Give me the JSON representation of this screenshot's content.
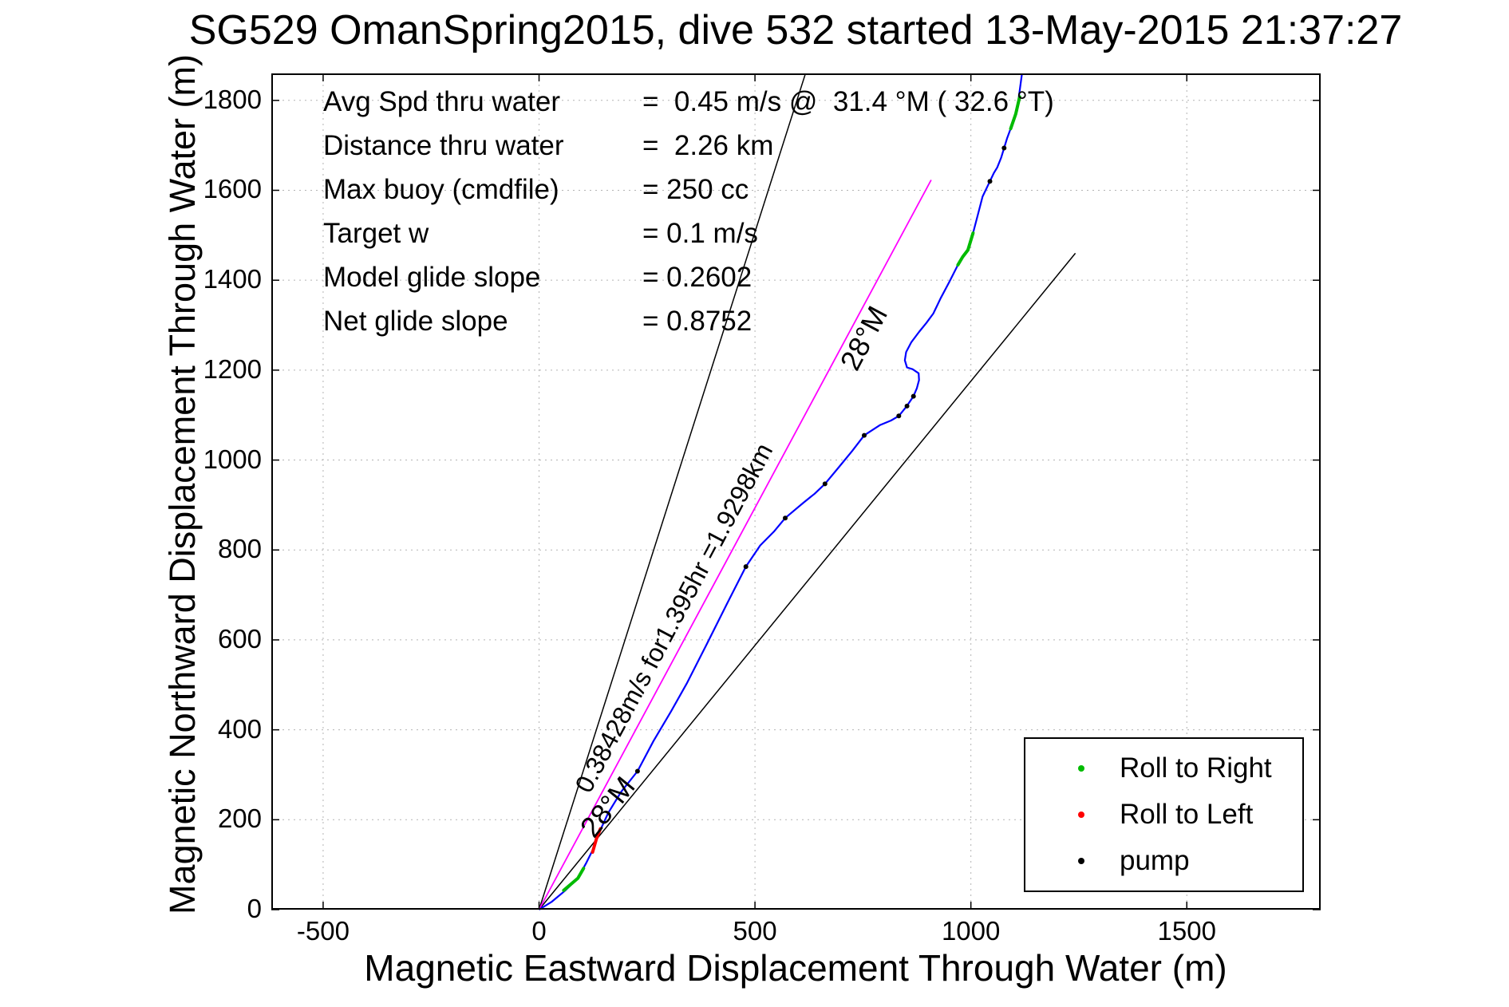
{
  "chart_data": {
    "type": "line",
    "title": "SG529 OmanSpring2015, dive 532 started 13-May-2015 21:37:27",
    "xlabel": "Magnetic Eastward Displacement Through Water (m)",
    "ylabel": "Magnetic Northward Displacement Through Water (m)",
    "xlim": [
      -620,
      1810
    ],
    "ylim": [
      0,
      1860
    ],
    "x_ticks": [
      -500,
      0,
      500,
      1000,
      1500
    ],
    "y_ticks": [
      0,
      200,
      400,
      600,
      800,
      1000,
      1200,
      1400,
      1600,
      1800
    ],
    "grid": true,
    "legend": {
      "position": "lower right",
      "entries": [
        {
          "label": "Roll to Right",
          "color": "#00bb00"
        },
        {
          "label": "Roll to Left",
          "color": "#ff0000"
        },
        {
          "label": "pump",
          "color": "#000000"
        }
      ]
    },
    "series": [
      {
        "name": "bearing-line-steep",
        "color": "#000000",
        "width": 1.5,
        "points": [
          [
            0,
            0
          ],
          [
            616,
            1857
          ]
        ]
      },
      {
        "name": "bearing-line-shallow",
        "color": "#000000",
        "width": 1.5,
        "points": [
          [
            0,
            0
          ],
          [
            1242,
            1460
          ]
        ]
      },
      {
        "name": "avg-speed-vector",
        "color": "#ff00ff",
        "width": 1.8,
        "points": [
          [
            0,
            0
          ],
          [
            908,
            1623
          ]
        ]
      },
      {
        "name": "track-through-water",
        "color": "#0000ff",
        "width": 2.2,
        "points": [
          [
            0,
            0
          ],
          [
            30,
            18
          ],
          [
            60,
            42
          ],
          [
            90,
            70
          ],
          [
            110,
            105
          ],
          [
            128,
            140
          ],
          [
            137,
            167
          ],
          [
            160,
            215
          ],
          [
            190,
            262
          ],
          [
            228,
            308
          ],
          [
            265,
            375
          ],
          [
            305,
            440
          ],
          [
            342,
            503
          ],
          [
            388,
            590
          ],
          [
            435,
            680
          ],
          [
            479,
            763
          ],
          [
            512,
            810
          ],
          [
            545,
            842
          ],
          [
            570,
            871
          ],
          [
            612,
            905
          ],
          [
            638,
            925
          ],
          [
            662,
            947
          ],
          [
            695,
            985
          ],
          [
            725,
            1020
          ],
          [
            753,
            1055
          ],
          [
            790,
            1078
          ],
          [
            815,
            1088
          ],
          [
            833,
            1098
          ],
          [
            850,
            1118
          ],
          [
            867,
            1142
          ],
          [
            875,
            1160
          ],
          [
            880,
            1178
          ],
          [
            879,
            1193
          ],
          [
            865,
            1202
          ],
          [
            852,
            1206
          ],
          [
            847,
            1222
          ],
          [
            850,
            1240
          ],
          [
            862,
            1262
          ],
          [
            880,
            1285
          ],
          [
            897,
            1305
          ],
          [
            913,
            1326
          ],
          [
            930,
            1360
          ],
          [
            950,
            1396
          ],
          [
            970,
            1434
          ],
          [
            981,
            1452
          ],
          [
            993,
            1467
          ],
          [
            1005,
            1505
          ],
          [
            1016,
            1545
          ],
          [
            1027,
            1586
          ],
          [
            1044,
            1620
          ],
          [
            1053,
            1638
          ],
          [
            1061,
            1651
          ],
          [
            1070,
            1672
          ],
          [
            1077,
            1694
          ],
          [
            1084,
            1716
          ],
          [
            1092,
            1737
          ],
          [
            1100,
            1757
          ],
          [
            1107,
            1777
          ],
          [
            1112,
            1815
          ],
          [
            1118,
            1857
          ]
        ]
      }
    ],
    "marker_segments": [
      {
        "name": "roll-right-segment",
        "color": "#00bb00",
        "points": [
          [
            57,
            43
          ],
          [
            90,
            70
          ],
          [
            103,
            92
          ]
        ]
      },
      {
        "name": "roll-left-segment",
        "color": "#ff0000",
        "points": [
          [
            124,
            128
          ],
          [
            133,
            158
          ],
          [
            142,
            180
          ]
        ]
      },
      {
        "name": "roll-right-segment",
        "color": "#00bb00",
        "points": [
          [
            970,
            1434
          ],
          [
            981,
            1452
          ],
          [
            993,
            1467
          ],
          [
            1005,
            1505
          ]
        ]
      },
      {
        "name": "roll-right-segment",
        "color": "#00bb00",
        "points": [
          [
            1092,
            1737
          ],
          [
            1104,
            1770
          ],
          [
            1113,
            1808
          ]
        ]
      }
    ],
    "pump_points": [
      [
        228,
        308
      ],
      [
        479,
        763
      ],
      [
        570,
        871
      ],
      [
        662,
        947
      ],
      [
        753,
        1055
      ],
      [
        833,
        1098
      ],
      [
        852,
        1120
      ],
      [
        867,
        1142
      ],
      [
        1044,
        1620
      ],
      [
        1077,
        1694
      ]
    ],
    "pump_color": "#000000",
    "annotations": [
      {
        "name": "speed-distance-label",
        "text": "0.38428m/s for1.395hr =1.9298km",
        "x": 330,
        "y": 640,
        "rotation": -62
      },
      {
        "name": "bearing-label-upper",
        "text": "28°M",
        "x": 772,
        "y": 1261,
        "rotation": -62
      },
      {
        "name": "bearing-label-lower",
        "text": "28°M",
        "x": 176,
        "y": 215,
        "rotation": -51
      }
    ]
  },
  "stats": [
    {
      "label": "Avg Spd thru water",
      "value": "=  0.45 m/s @  31.4 °M ( 32.6 °T)"
    },
    {
      "label": "Distance thru water",
      "value": "=  2.26 km"
    },
    {
      "label": "Max buoy (cmdfile)",
      "value": "= 250 cc"
    },
    {
      "label": "Target w",
      "value": "= 0.1 m/s"
    },
    {
      "label": "Model glide slope",
      "value": "= 0.2602"
    },
    {
      "label": "Net glide slope",
      "value": "= 0.8752"
    }
  ]
}
